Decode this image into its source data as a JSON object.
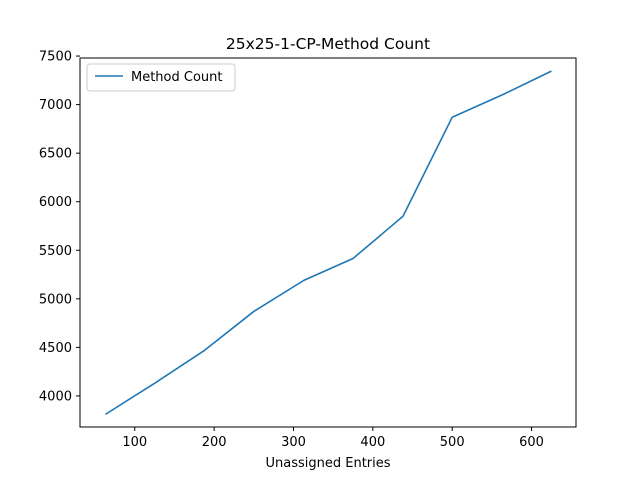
{
  "chart_data": {
    "type": "line",
    "title": "25x25-1-CP-Method Count",
    "xlabel": "Unassigned Entries",
    "ylabel": "",
    "xlim": [
      31,
      656
    ],
    "ylim": [
      3680,
      7480
    ],
    "x_ticks": [
      100,
      200,
      300,
      400,
      500,
      600
    ],
    "y_ticks": [
      4000,
      4500,
      5000,
      5500,
      6000,
      6500,
      7000,
      7500
    ],
    "grid": false,
    "legend": {
      "position": "top-left",
      "entries": [
        "Method Count"
      ]
    },
    "series": [
      {
        "name": "Method Count",
        "color": "#1f77b4",
        "x": [
          63,
          125,
          188,
          250,
          313,
          375,
          438,
          500,
          563,
          625
        ],
        "y": [
          3810,
          4130,
          4470,
          4870,
          5190,
          5415,
          5850,
          6870,
          7100,
          7345
        ]
      }
    ]
  }
}
